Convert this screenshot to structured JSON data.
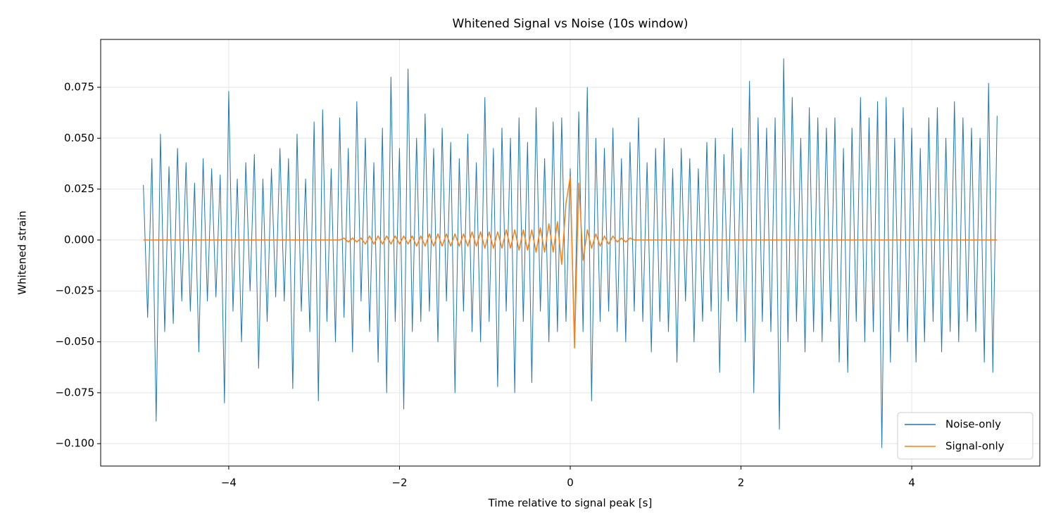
{
  "chart_data": {
    "type": "line",
    "title": "Whitened Signal vs Noise (10s window)",
    "xlabel": "Time relative to signal peak [s]",
    "ylabel": "Whitened strain",
    "x": [
      -5,
      -4.95,
      -4.9,
      -4.85,
      -4.8,
      -4.75,
      -4.7,
      -4.65,
      -4.6,
      -4.55,
      -4.5,
      -4.45,
      -4.4,
      -4.35,
      -4.3,
      -4.25,
      -4.2,
      -4.15,
      -4.1,
      -4.05,
      -4,
      -3.95,
      -3.9,
      -3.85,
      -3.8,
      -3.75,
      -3.7,
      -3.65,
      -3.6,
      -3.55,
      -3.5,
      -3.45,
      -3.4,
      -3.35,
      -3.3,
      -3.25,
      -3.2,
      -3.15,
      -3.1,
      -3.05,
      -3,
      -2.95,
      -2.9,
      -2.85,
      -2.8,
      -2.75,
      -2.7,
      -2.65,
      -2.6,
      -2.55,
      -2.5,
      -2.45,
      -2.4,
      -2.35,
      -2.3,
      -2.25,
      -2.2,
      -2.15,
      -2.1,
      -2.05,
      -2,
      -1.95,
      -1.9,
      -1.85,
      -1.8,
      -1.75,
      -1.7,
      -1.65,
      -1.6,
      -1.55,
      -1.5,
      -1.45,
      -1.4,
      -1.35,
      -1.3,
      -1.25,
      -1.2,
      -1.15,
      -1.1,
      -1.05,
      -1,
      -0.95,
      -0.9,
      -0.85,
      -0.8,
      -0.75,
      -0.7,
      -0.65,
      -0.6,
      -0.55,
      -0.5,
      -0.45,
      -0.4,
      -0.35,
      -0.3,
      -0.25,
      -0.2,
      -0.15,
      -0.1,
      -0.05,
      0,
      0.05,
      0.1,
      0.15,
      0.2,
      0.25,
      0.3,
      0.35,
      0.4,
      0.45,
      0.5,
      0.55,
      0.6,
      0.65,
      0.7,
      0.75,
      0.8,
      0.85,
      0.9,
      0.95,
      1,
      1.05,
      1.1,
      1.15,
      1.2,
      1.25,
      1.3,
      1.35,
      1.4,
      1.45,
      1.5,
      1.55,
      1.6,
      1.65,
      1.7,
      1.75,
      1.8,
      1.85,
      1.9,
      1.95,
      2,
      2.05,
      2.1,
      2.15,
      2.2,
      2.25,
      2.3,
      2.35,
      2.4,
      2.45,
      2.5,
      2.55,
      2.6,
      2.65,
      2.7,
      2.75,
      2.8,
      2.85,
      2.9,
      2.95,
      3,
      3.05,
      3.1,
      3.15,
      3.2,
      3.25,
      3.3,
      3.35,
      3.4,
      3.45,
      3.5,
      3.55,
      3.6,
      3.65,
      3.7,
      3.75,
      3.8,
      3.85,
      3.9,
      3.95,
      4,
      4.05,
      4.1,
      4.15,
      4.2,
      4.25,
      4.3,
      4.35,
      4.4,
      4.45,
      4.5,
      4.55,
      4.6,
      4.65,
      4.7,
      4.75,
      4.8,
      4.85,
      4.9,
      4.95,
      5
    ],
    "series": [
      {
        "name": "Noise-only",
        "color": "#1f77b4",
        "values": [
          0.027,
          -0.038,
          0.04,
          -0.089,
          0.052,
          -0.045,
          0.036,
          -0.041,
          0.045,
          -0.03,
          0.038,
          -0.035,
          0.028,
          -0.055,
          0.04,
          -0.03,
          0.035,
          -0.028,
          0.032,
          -0.08,
          0.073,
          -0.035,
          0.03,
          -0.05,
          0.038,
          -0.025,
          0.042,
          -0.063,
          0.03,
          -0.04,
          0.035,
          -0.028,
          0.045,
          -0.03,
          0.04,
          -0.073,
          0.052,
          -0.035,
          0.03,
          -0.045,
          0.058,
          -0.079,
          0.064,
          -0.04,
          0.035,
          -0.05,
          0.06,
          -0.038,
          0.045,
          -0.055,
          0.068,
          -0.03,
          0.05,
          -0.045,
          0.038,
          -0.06,
          0.055,
          -0.075,
          0.08,
          -0.04,
          0.045,
          -0.083,
          0.084,
          -0.045,
          0.05,
          -0.04,
          0.062,
          -0.035,
          0.045,
          -0.05,
          0.055,
          -0.03,
          0.048,
          -0.075,
          0.04,
          -0.035,
          0.052,
          -0.045,
          0.038,
          -0.05,
          0.07,
          -0.04,
          0.045,
          -0.072,
          0.055,
          -0.035,
          0.05,
          -0.075,
          0.06,
          -0.04,
          0.048,
          -0.07,
          0.065,
          -0.035,
          0.04,
          -0.05,
          0.058,
          -0.045,
          0.06,
          -0.04,
          0.035,
          -0.05,
          0.063,
          -0.045,
          0.075,
          -0.079,
          0.05,
          -0.04,
          0.045,
          -0.035,
          0.055,
          -0.045,
          0.04,
          -0.05,
          0.048,
          -0.035,
          0.06,
          -0.04,
          0.038,
          -0.055,
          0.045,
          -0.04,
          0.05,
          -0.045,
          0.035,
          -0.06,
          0.045,
          -0.03,
          0.04,
          -0.05,
          0.035,
          -0.04,
          0.048,
          -0.035,
          0.05,
          -0.065,
          0.042,
          -0.03,
          0.055,
          -0.04,
          0.045,
          -0.05,
          0.078,
          -0.075,
          0.06,
          -0.04,
          0.055,
          -0.045,
          0.06,
          -0.093,
          0.089,
          -0.05,
          0.07,
          -0.04,
          0.05,
          -0.055,
          0.065,
          -0.045,
          0.06,
          -0.05,
          0.055,
          -0.04,
          0.06,
          -0.06,
          0.045,
          -0.065,
          0.055,
          -0.04,
          0.07,
          -0.05,
          0.06,
          -0.045,
          0.068,
          -0.102,
          0.07,
          -0.06,
          0.05,
          -0.045,
          0.065,
          -0.05,
          0.055,
          -0.06,
          0.045,
          -0.05,
          0.06,
          -0.04,
          0.065,
          -0.055,
          0.05,
          -0.045,
          0.068,
          -0.05,
          0.06,
          -0.04,
          0.055,
          -0.045,
          0.05,
          -0.06,
          0.077,
          -0.065,
          0.061
        ]
      },
      {
        "name": "Signal-only",
        "color": "#ff7f0e",
        "values": [
          0,
          0,
          0,
          0,
          0,
          0,
          0,
          0,
          0,
          0,
          0,
          0,
          0,
          0,
          0,
          0,
          0,
          0,
          0,
          0,
          0,
          0,
          0,
          0,
          0,
          0,
          0,
          0,
          0,
          0,
          0,
          0,
          0,
          0,
          0,
          0,
          0,
          0,
          0,
          0,
          0,
          0,
          0,
          0,
          0,
          0,
          0,
          0.001,
          -0.001,
          0.001,
          -0.001,
          0.001,
          -0.002,
          0.002,
          -0.002,
          0.002,
          -0.002,
          0.002,
          -0.002,
          0.002,
          -0.002,
          0.002,
          -0.002,
          0.002,
          -0.003,
          0.002,
          -0.003,
          0.003,
          -0.003,
          0.003,
          -0.003,
          0.003,
          -0.003,
          0.003,
          -0.003,
          0.003,
          -0.003,
          0.004,
          -0.003,
          0.004,
          -0.004,
          0.004,
          -0.004,
          0.004,
          -0.004,
          0.005,
          -0.004,
          0.005,
          -0.005,
          0.005,
          -0.005,
          0.005,
          -0.006,
          0.006,
          -0.006,
          0.008,
          -0.006,
          0.009,
          -0.012,
          0.018,
          0.031,
          -0.053,
          0.028,
          -0.01,
          0.005,
          -0.004,
          0.003,
          -0.003,
          0.002,
          -0.002,
          0.002,
          -0.001,
          0.001,
          -0.001,
          0.001,
          0,
          0,
          0,
          0,
          0,
          0,
          0,
          0,
          0,
          0,
          0,
          0,
          0,
          0,
          0,
          0,
          0,
          0,
          0,
          0,
          0,
          0,
          0,
          0,
          0,
          0,
          0,
          0,
          0,
          0,
          0,
          0,
          0,
          0,
          0,
          0,
          0,
          0,
          0,
          0,
          0,
          0,
          0,
          0,
          0,
          0,
          0,
          0,
          0,
          0,
          0,
          0,
          0,
          0,
          0,
          0,
          0,
          0,
          0,
          0,
          0,
          0,
          0,
          0,
          0,
          0,
          0,
          0,
          0,
          0,
          0,
          0,
          0,
          0,
          0,
          0,
          0,
          0,
          0,
          0,
          0,
          0,
          0,
          0,
          0,
          0
        ]
      }
    ],
    "xlim": [
      -5.5,
      5.5
    ],
    "ylim": [
      -0.111,
      0.0985
    ],
    "xticks": [
      {
        "value": -4,
        "label": "−4"
      },
      {
        "value": -2,
        "label": "−2"
      },
      0,
      2,
      4
    ],
    "yticks": [
      {
        "value": -0.1,
        "label": "−0.100"
      },
      {
        "value": -0.075,
        "label": "−0.075"
      },
      {
        "value": -0.05,
        "label": "−0.050"
      },
      {
        "value": -0.025,
        "label": "−0.025"
      },
      {
        "value": 0,
        "label": "0.000"
      },
      {
        "value": 0.025,
        "label": "0.025"
      },
      {
        "value": 0.05,
        "label": "0.050"
      },
      {
        "value": 0.075,
        "label": "0.075"
      }
    ],
    "grid": true,
    "legend": "lower right"
  }
}
